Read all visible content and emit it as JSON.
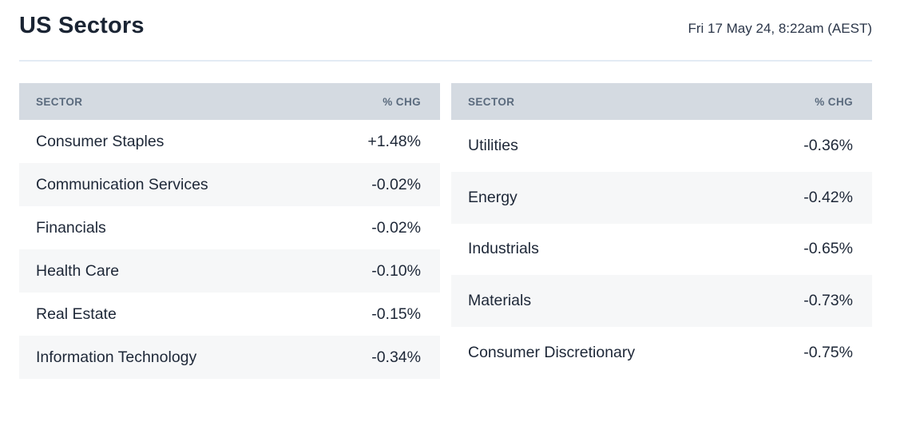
{
  "header": {
    "title": "US Sectors",
    "timestamp": "Fri 17 May 24, 8:22am (AEST)"
  },
  "colors": {
    "title": "#1a2433",
    "timestamp": "#2b3649",
    "divider": "#e3ebf4",
    "header_bg": "#d4dae1",
    "header_text": "#5a6a7d",
    "row_text": "#1d2737",
    "row_alt_bg": "#f6f7f8",
    "positive": "#35795c",
    "negative": "#da452f"
  },
  "chart_data": [
    {
      "type": "table",
      "columns": [
        "SECTOR",
        "% CHG"
      ],
      "rows": [
        {
          "sector": "Consumer Staples",
          "pct_chg": "+1.48%",
          "direction": "positive"
        },
        {
          "sector": "Communication Services",
          "pct_chg": "-0.02%",
          "direction": "negative"
        },
        {
          "sector": "Financials",
          "pct_chg": "-0.02%",
          "direction": "negative"
        },
        {
          "sector": "Health Care",
          "pct_chg": "-0.10%",
          "direction": "negative"
        },
        {
          "sector": "Real Estate",
          "pct_chg": "-0.15%",
          "direction": "negative"
        },
        {
          "sector": "Information Technology",
          "pct_chg": "-0.34%",
          "direction": "negative"
        }
      ]
    },
    {
      "type": "table",
      "columns": [
        "SECTOR",
        "% CHG"
      ],
      "rows": [
        {
          "sector": "Utilities",
          "pct_chg": "-0.36%",
          "direction": "negative"
        },
        {
          "sector": "Energy",
          "pct_chg": "-0.42%",
          "direction": "negative"
        },
        {
          "sector": "Industrials",
          "pct_chg": "-0.65%",
          "direction": "negative"
        },
        {
          "sector": "Materials",
          "pct_chg": "-0.73%",
          "direction": "negative"
        },
        {
          "sector": "Consumer Discretionary",
          "pct_chg": "-0.75%",
          "direction": "negative"
        }
      ]
    }
  ]
}
